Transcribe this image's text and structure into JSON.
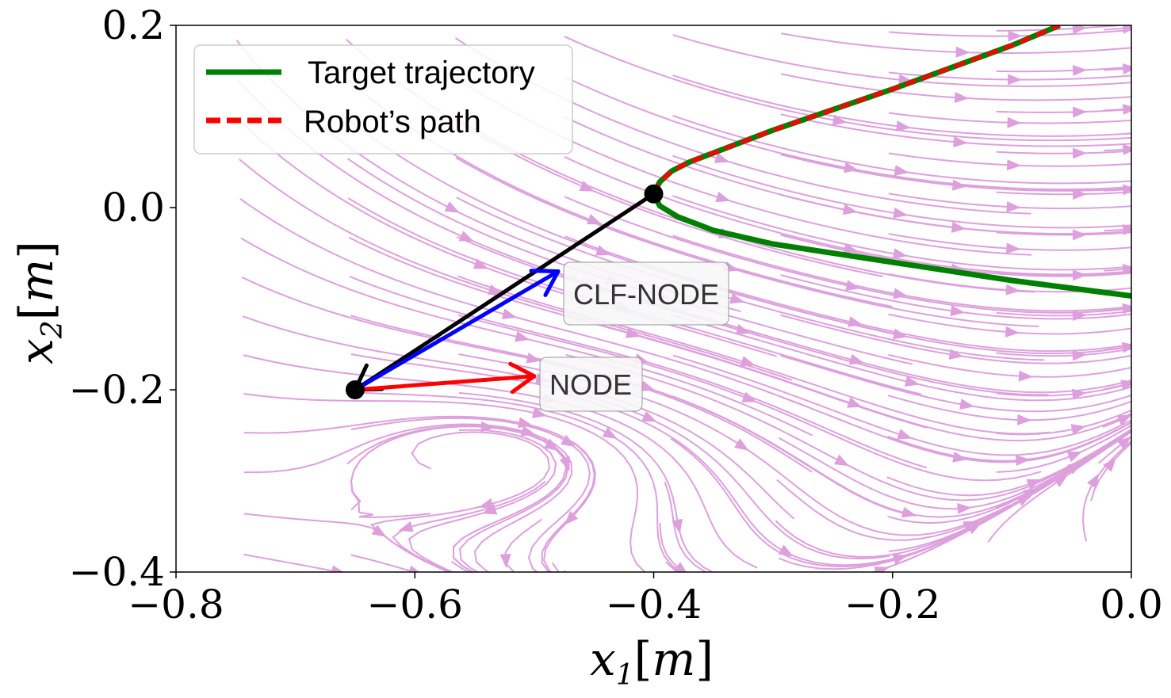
{
  "chart_data": {
    "type": "line",
    "xlabel": "x_1[m]",
    "ylabel": "x_2[m]",
    "xlim": [
      -0.8,
      0.0
    ],
    "ylim": [
      -0.4,
      0.2
    ],
    "xticks": [
      -0.8,
      -0.6,
      -0.4,
      -0.2,
      0.0
    ],
    "yticks": [
      -0.4,
      -0.2,
      0.0,
      0.2
    ],
    "xtick_labels": [
      "−0.8",
      "−0.6",
      "−0.4",
      "−0.2",
      "0.0"
    ],
    "ytick_labels": [
      "−0.4",
      "−0.2",
      "0.0",
      "0.2"
    ],
    "grid": false,
    "legend": {
      "placement": "top-left",
      "entries": [
        {
          "label": "Target trajectory",
          "color": "#008000",
          "style": "solid"
        },
        {
          "label": "Robot’s path",
          "color": "#ff0000",
          "style": "dashed"
        }
      ]
    },
    "series": [
      {
        "name": "Target trajectory",
        "color": "#008000",
        "x": [
          0.0,
          -0.1,
          -0.2,
          -0.3,
          -0.35,
          -0.38,
          -0.395,
          -0.4,
          -0.395,
          -0.385,
          -0.37,
          -0.35,
          -0.3,
          -0.2,
          -0.1,
          -0.06
        ],
        "y": [
          -0.097,
          -0.08,
          -0.06,
          -0.04,
          -0.025,
          -0.01,
          0.002,
          0.015,
          0.028,
          0.04,
          0.05,
          0.06,
          0.085,
          0.13,
          0.178,
          0.2
        ]
      },
      {
        "name": "Robot’s path",
        "color": "#ff0000",
        "x": [
          -0.4,
          -0.395,
          -0.385,
          -0.37,
          -0.35,
          -0.3,
          -0.2,
          -0.1,
          -0.06
        ],
        "y": [
          0.015,
          0.028,
          0.04,
          0.05,
          0.06,
          0.085,
          0.13,
          0.178,
          0.2
        ]
      }
    ],
    "points": [
      {
        "x": -0.4,
        "y": 0.015,
        "color": "#000000"
      },
      {
        "x": -0.65,
        "y": -0.2,
        "color": "#000000"
      }
    ],
    "arrows": [
      {
        "from": [
          -0.4,
          0.015
        ],
        "to": [
          -0.65,
          -0.2
        ],
        "color": "#000000"
      },
      {
        "from": [
          -0.65,
          -0.2
        ],
        "to": [
          -0.48,
          -0.07
        ],
        "color": "#0000ff",
        "label": "CLF-NODE",
        "label_at": [
          -0.395,
          -0.095
        ]
      },
      {
        "from": [
          -0.65,
          -0.2
        ],
        "to": [
          -0.5,
          -0.185
        ],
        "color": "#ff0000",
        "label": "NODE",
        "label_at": [
          -0.45,
          -0.195
        ]
      }
    ],
    "streamplot": {
      "color": "#dda0dd"
    }
  }
}
